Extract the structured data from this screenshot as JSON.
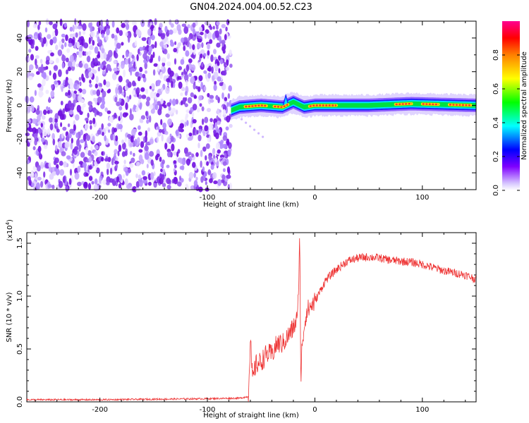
{
  "figure": {
    "title": "GN04.2024.004.00.52.C23"
  },
  "chart_data": [
    {
      "type": "heatmap",
      "title": "GN04.2024.004.00.52.C23",
      "xlabel": "Height of straight line (km)",
      "ylabel": "Frequency (Hz)",
      "xlim": [
        -268,
        150
      ],
      "ylim": [
        -50,
        50
      ],
      "xticks": [
        -200,
        -100,
        0,
        100
      ],
      "xticklabels": [
        "-200",
        "-100",
        "0",
        "100"
      ],
      "yticks": [
        -40,
        -20,
        0,
        20,
        40
      ],
      "yticklabels": [
        "-40",
        "-20",
        "0",
        "20",
        "40"
      ],
      "noise_region_x": [
        -268,
        -78
      ],
      "signal_band": {
        "x_start": -78,
        "center_freq_hz": [
          [
            -78,
            -3
          ],
          [
            -70,
            -1
          ],
          [
            -50,
            0
          ],
          [
            -30,
            -1
          ],
          [
            -20,
            2
          ],
          [
            -10,
            -1
          ],
          [
            0,
            0
          ],
          [
            50,
            0
          ],
          [
            90,
            1
          ],
          [
            150,
            0
          ]
        ],
        "peak_segments_x": [
          [
            -65,
            -45
          ],
          [
            -38,
            -25
          ],
          [
            -5,
            20
          ],
          [
            75,
            90
          ],
          [
            100,
            115
          ],
          [
            125,
            145
          ]
        ]
      },
      "colorbar": {
        "label": "Normalized spectral amplitude",
        "range": [
          0,
          1
        ],
        "ticks": [
          0.0,
          0.2,
          0.4,
          0.6,
          0.8
        ],
        "ticklabels": [
          "0.0",
          "0.2",
          "0.4",
          "0.6",
          "0.8"
        ],
        "colors": [
          "#ffffff",
          "#d8c8ff",
          "#7f00ff",
          "#0000ff",
          "#00ffff",
          "#00ff00",
          "#ffff00",
          "#ff8000",
          "#ff0000",
          "#ff00a0"
        ]
      },
      "grid": false
    },
    {
      "type": "line",
      "xlabel": "Height of straight line (km)",
      "ylabel": "SNR (10 * v/v)",
      "scale_note": "(x10",
      "scale_exp": "4",
      "scale_close": ")",
      "xlim": [
        -268,
        150
      ],
      "ylim": [
        0,
        1.6
      ],
      "xticks": [
        -200,
        -100,
        0,
        100
      ],
      "xticklabels": [
        "-200",
        "-100",
        "0",
        "100"
      ],
      "yticks": [
        0,
        0.5,
        1.0,
        1.5
      ],
      "yticklabels": [
        "0.0",
        "0.5",
        "1.0",
        "1.5"
      ],
      "series": [
        {
          "color": "#ee3333",
          "points": [
            [
              -268,
              0.02
            ],
            [
              -200,
              0.02
            ],
            [
              -150,
              0.025
            ],
            [
              -100,
              0.03
            ],
            [
              -70,
              0.035
            ],
            [
              -62,
              0.05
            ],
            [
              -60,
              0.6
            ],
            [
              -58,
              0.2
            ],
            [
              -55,
              0.35
            ],
            [
              -50,
              0.38
            ],
            [
              -45,
              0.45
            ],
            [
              -40,
              0.45
            ],
            [
              -35,
              0.55
            ],
            [
              -30,
              0.55
            ],
            [
              -25,
              0.62
            ],
            [
              -20,
              0.7
            ],
            [
              -16,
              0.8
            ],
            [
              -14,
              1.58
            ],
            [
              -13,
              0.07
            ],
            [
              -12,
              0.55
            ],
            [
              -8,
              0.85
            ],
            [
              -4,
              0.9
            ],
            [
              0,
              0.95
            ],
            [
              5,
              1.05
            ],
            [
              10,
              1.15
            ],
            [
              20,
              1.25
            ],
            [
              30,
              1.33
            ],
            [
              40,
              1.36
            ],
            [
              50,
              1.37
            ],
            [
              60,
              1.36
            ],
            [
              70,
              1.34
            ],
            [
              80,
              1.33
            ],
            [
              90,
              1.32
            ],
            [
              100,
              1.3
            ],
            [
              110,
              1.27
            ],
            [
              120,
              1.24
            ],
            [
              130,
              1.22
            ],
            [
              140,
              1.2
            ],
            [
              150,
              1.16
            ]
          ]
        }
      ],
      "grid": false
    }
  ]
}
